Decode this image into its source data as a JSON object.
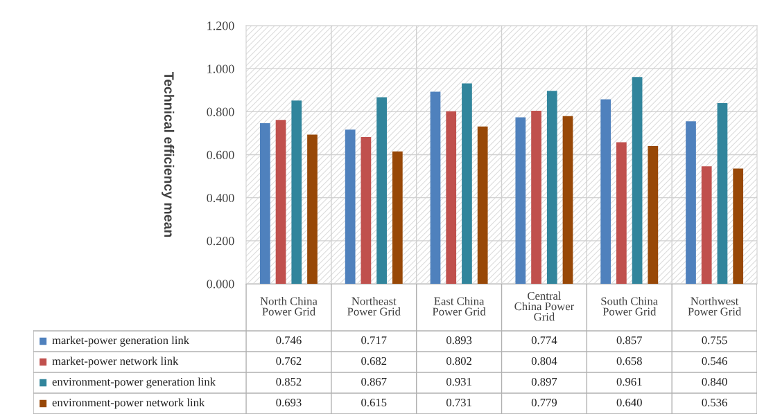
{
  "chart_data": {
    "type": "bar",
    "ylabel": "Technical efficiency mean",
    "categories": [
      "North China\nPower Grid",
      "Northeast\nPower Grid",
      "East China\nPower Grid",
      "Central\nChina Power\nGrid",
      "South China\nPower Grid",
      "Northwest\nPower Grid"
    ],
    "series": [
      {
        "name": "market-power generation link",
        "color": "#4f81bd",
        "values": [
          0.746,
          0.717,
          0.893,
          0.774,
          0.857,
          0.755
        ],
        "value_labels": [
          "0.746",
          "0.717",
          "0.893",
          "0.774",
          "0.857",
          "0.755"
        ]
      },
      {
        "name": "market-power network link",
        "color": "#c0504d",
        "values": [
          0.762,
          0.682,
          0.802,
          0.804,
          0.658,
          0.546
        ],
        "value_labels": [
          "0.762",
          "0.682",
          "0.802",
          "0.804",
          "0.658",
          "0.546"
        ]
      },
      {
        "name": "environment-power generation link",
        "color": "#31859c",
        "values": [
          0.852,
          0.867,
          0.931,
          0.897,
          0.961,
          0.84
        ],
        "value_labels": [
          "0.852",
          "0.867",
          "0.931",
          "0.897",
          "0.961",
          "0.840"
        ]
      },
      {
        "name": "environment-power network link",
        "color": "#984807",
        "values": [
          0.693,
          0.615,
          0.731,
          0.779,
          0.64,
          0.536
        ],
        "value_labels": [
          "0.693",
          "0.615",
          "0.731",
          "0.779",
          "0.640",
          "0.536"
        ]
      }
    ],
    "ylim": [
      0,
      1.2
    ],
    "yticks": [
      {
        "value": 0,
        "label": "0.000"
      },
      {
        "value": 0.2,
        "label": "0.200"
      },
      {
        "value": 0.4,
        "label": "0.400"
      },
      {
        "value": 0.6,
        "label": "0.600"
      },
      {
        "value": 0.8,
        "label": "0.800"
      },
      {
        "value": 1.0,
        "label": "1.000"
      },
      {
        "value": 1.2,
        "label": "1.200"
      }
    ],
    "grid": true,
    "legend": "bottom"
  }
}
